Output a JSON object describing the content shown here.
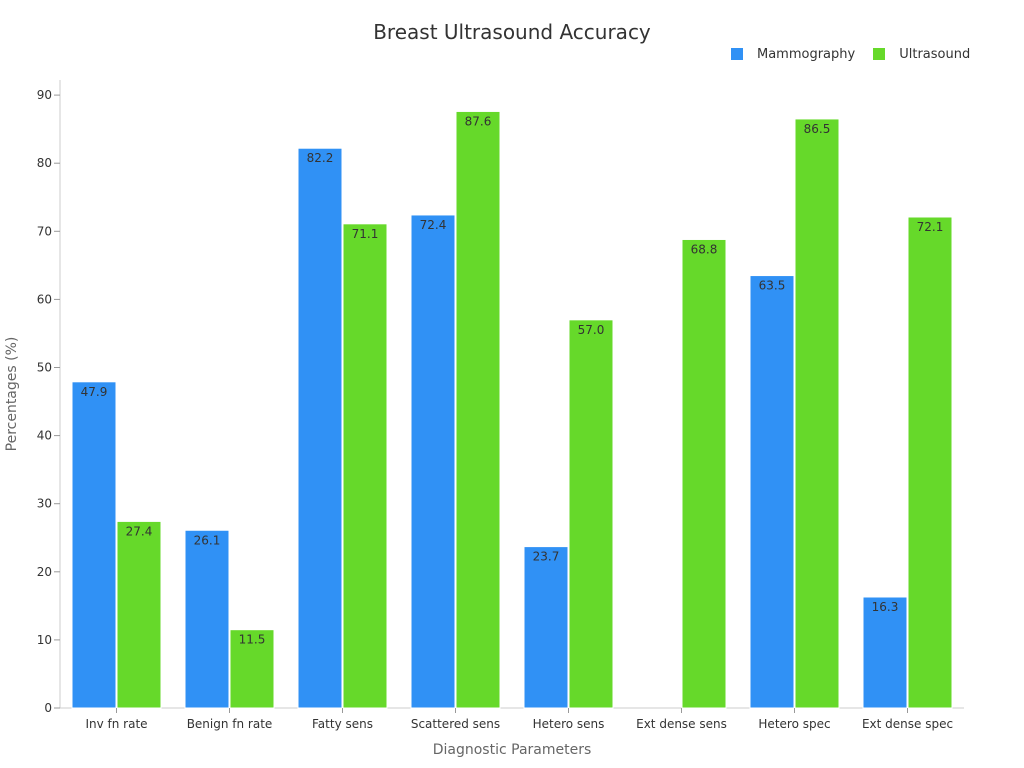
{
  "chart_data": {
    "type": "bar",
    "title": "Breast Ultrasound Accuracy",
    "xlabel": "Diagnostic Parameters",
    "ylabel": "Percentages (%)",
    "ylim": [
      0,
      92
    ],
    "yticks": [
      0,
      10,
      20,
      30,
      40,
      50,
      60,
      70,
      80,
      90
    ],
    "categories": [
      "Inv fn rate",
      "Benign fn rate",
      "Fatty sens",
      "Scattered sens",
      "Hetero sens",
      "Ext dense sens",
      "Hetero spec",
      "Ext dense spec"
    ],
    "series": [
      {
        "name": "Mammography",
        "color": "#3091f5",
        "values": [
          47.9,
          26.1,
          82.2,
          72.4,
          23.7,
          null,
          63.5,
          16.3
        ]
      },
      {
        "name": "Ultrasound",
        "color": "#66d92a",
        "values": [
          27.4,
          11.5,
          71.1,
          87.6,
          57.0,
          68.8,
          86.5,
          72.1
        ]
      }
    ],
    "legend_position": "top-right",
    "grid": false
  }
}
